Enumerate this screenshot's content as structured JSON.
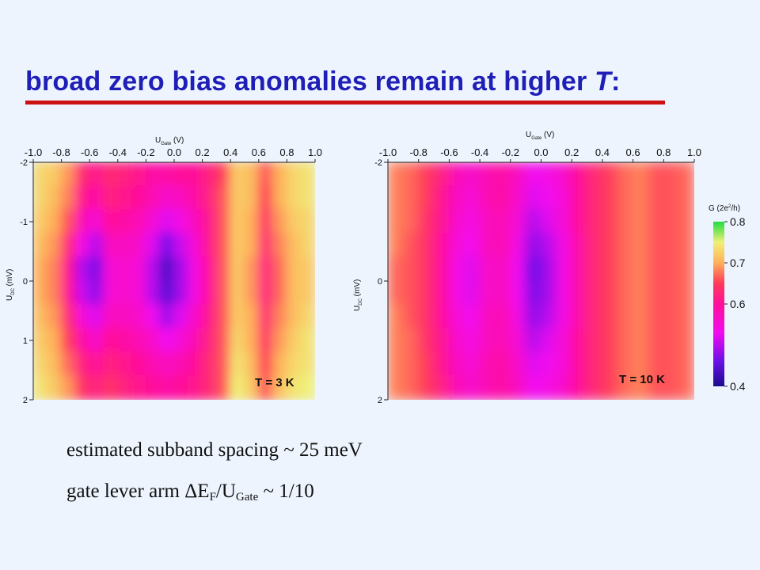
{
  "slide": {
    "title_main": "broad zero bias anomalies remain at higher ",
    "title_italic": "T",
    "title_end": ":",
    "accent_color": "#1f1fb8",
    "rule_color": "#cc1111"
  },
  "notes": {
    "line1": "estimated subband spacing ~ 25 meV",
    "line2_pre": "gate lever arm ",
    "line2_delta": "ΔE",
    "line2_sub1": "F",
    "line2_mid": "/U",
    "line2_sub2": "Gate",
    "line2_post": " ~ 1/10"
  },
  "chart_data": [
    {
      "type": "heatmap",
      "annotation": "T = 3 K",
      "xlabel": "U",
      "xlabel_sub": "Gate",
      "xlabel_unit": " (V)",
      "ylabel": "U",
      "ylabel_sub": "DC",
      "ylabel_unit": " (mV)",
      "xlim": [
        -1.0,
        1.0
      ],
      "ylim": [
        -2,
        2
      ],
      "x_ticks": [
        "-1.0",
        "-0.8",
        "-0.6",
        "-0.4",
        "-0.2",
        "0.0",
        "0.2",
        "0.4",
        "0.6",
        "0.8",
        "1.0"
      ],
      "y_ticks": [
        "-2",
        "-1",
        "0",
        "1",
        "2"
      ],
      "x": [
        -0.95,
        -0.85,
        -0.75,
        -0.65,
        -0.55,
        -0.45,
        -0.35,
        -0.25,
        -0.15,
        -0.05,
        0.05,
        0.15,
        0.25,
        0.35,
        0.45,
        0.55,
        0.65,
        0.75,
        0.85,
        0.95
      ],
      "y": [
        -1.8,
        -1.4,
        -1.0,
        -0.6,
        -0.2,
        0.2,
        0.6,
        1.0,
        1.4,
        1.8
      ],
      "z": [
        [
          0.73,
          0.72,
          0.69,
          0.63,
          0.61,
          0.63,
          0.62,
          0.61,
          0.59,
          0.59,
          0.6,
          0.6,
          0.62,
          0.65,
          0.72,
          0.71,
          0.66,
          0.7,
          0.73,
          0.74
        ],
        [
          0.73,
          0.71,
          0.68,
          0.61,
          0.59,
          0.62,
          0.61,
          0.6,
          0.58,
          0.56,
          0.57,
          0.59,
          0.62,
          0.66,
          0.72,
          0.71,
          0.65,
          0.7,
          0.73,
          0.74
        ],
        [
          0.72,
          0.7,
          0.66,
          0.58,
          0.55,
          0.6,
          0.59,
          0.58,
          0.55,
          0.52,
          0.54,
          0.57,
          0.61,
          0.66,
          0.72,
          0.7,
          0.64,
          0.69,
          0.72,
          0.73
        ],
        [
          0.71,
          0.69,
          0.63,
          0.54,
          0.5,
          0.57,
          0.57,
          0.56,
          0.52,
          0.47,
          0.51,
          0.55,
          0.61,
          0.66,
          0.72,
          0.7,
          0.63,
          0.68,
          0.71,
          0.73
        ],
        [
          0.7,
          0.68,
          0.61,
          0.5,
          0.47,
          0.55,
          0.56,
          0.55,
          0.5,
          0.44,
          0.49,
          0.54,
          0.6,
          0.66,
          0.72,
          0.69,
          0.62,
          0.67,
          0.71,
          0.72
        ],
        [
          0.7,
          0.68,
          0.61,
          0.51,
          0.48,
          0.55,
          0.56,
          0.55,
          0.5,
          0.45,
          0.49,
          0.54,
          0.6,
          0.66,
          0.72,
          0.69,
          0.62,
          0.67,
          0.71,
          0.72
        ],
        [
          0.71,
          0.69,
          0.63,
          0.55,
          0.52,
          0.57,
          0.57,
          0.56,
          0.53,
          0.49,
          0.52,
          0.56,
          0.61,
          0.66,
          0.72,
          0.7,
          0.63,
          0.68,
          0.71,
          0.73
        ],
        [
          0.72,
          0.7,
          0.65,
          0.59,
          0.56,
          0.6,
          0.59,
          0.58,
          0.56,
          0.53,
          0.55,
          0.58,
          0.62,
          0.66,
          0.73,
          0.7,
          0.64,
          0.69,
          0.72,
          0.74
        ],
        [
          0.73,
          0.71,
          0.67,
          0.62,
          0.6,
          0.62,
          0.61,
          0.6,
          0.58,
          0.57,
          0.58,
          0.6,
          0.63,
          0.66,
          0.74,
          0.71,
          0.65,
          0.7,
          0.73,
          0.74
        ],
        [
          0.74,
          0.72,
          0.69,
          0.64,
          0.62,
          0.64,
          0.62,
          0.61,
          0.6,
          0.59,
          0.6,
          0.61,
          0.63,
          0.66,
          0.75,
          0.72,
          0.66,
          0.71,
          0.74,
          0.75
        ]
      ]
    },
    {
      "type": "heatmap",
      "annotation": "T = 10 K",
      "xlabel": "U",
      "xlabel_sub": "Gate",
      "xlabel_unit": " (V)",
      "ylabel": "U",
      "ylabel_sub": "DC",
      "ylabel_unit": " (mV)",
      "xlim": [
        -1.0,
        1.0
      ],
      "ylim": [
        -2,
        2
      ],
      "x_ticks": [
        "-1.0",
        "-0.8",
        "-0.6",
        "-0.4",
        "-0.2",
        "0.0",
        "0.2",
        "0.4",
        "0.6",
        "0.8",
        "1.0"
      ],
      "y_ticks": [
        "-2",
        "0",
        "2"
      ],
      "x": [
        -0.95,
        -0.85,
        -0.75,
        -0.65,
        -0.55,
        -0.45,
        -0.35,
        -0.25,
        -0.15,
        -0.05,
        0.05,
        0.15,
        0.25,
        0.35,
        0.45,
        0.55,
        0.65,
        0.75,
        0.85,
        0.95
      ],
      "y": [
        -1.8,
        -1.4,
        -1.0,
        -0.6,
        -0.2,
        0.2,
        0.6,
        1.0,
        1.4,
        1.8
      ],
      "z": [
        [
          0.68,
          0.67,
          0.65,
          0.62,
          0.58,
          0.56,
          0.58,
          0.59,
          0.57,
          0.53,
          0.54,
          0.56,
          0.6,
          0.63,
          0.65,
          0.67,
          0.68,
          0.66,
          0.66,
          0.67
        ],
        [
          0.68,
          0.67,
          0.65,
          0.61,
          0.57,
          0.55,
          0.58,
          0.59,
          0.56,
          0.52,
          0.53,
          0.55,
          0.6,
          0.63,
          0.65,
          0.67,
          0.68,
          0.66,
          0.66,
          0.67
        ],
        [
          0.68,
          0.67,
          0.64,
          0.61,
          0.56,
          0.54,
          0.57,
          0.58,
          0.55,
          0.5,
          0.52,
          0.55,
          0.6,
          0.63,
          0.65,
          0.67,
          0.68,
          0.66,
          0.66,
          0.67
        ],
        [
          0.68,
          0.66,
          0.64,
          0.6,
          0.55,
          0.53,
          0.57,
          0.58,
          0.54,
          0.48,
          0.5,
          0.54,
          0.59,
          0.63,
          0.65,
          0.67,
          0.68,
          0.66,
          0.66,
          0.67
        ],
        [
          0.67,
          0.66,
          0.64,
          0.6,
          0.54,
          0.52,
          0.56,
          0.57,
          0.53,
          0.46,
          0.49,
          0.54,
          0.59,
          0.63,
          0.65,
          0.67,
          0.68,
          0.66,
          0.66,
          0.67
        ],
        [
          0.67,
          0.66,
          0.64,
          0.6,
          0.54,
          0.52,
          0.56,
          0.57,
          0.53,
          0.47,
          0.49,
          0.54,
          0.59,
          0.63,
          0.65,
          0.67,
          0.68,
          0.66,
          0.66,
          0.67
        ],
        [
          0.68,
          0.66,
          0.64,
          0.6,
          0.55,
          0.53,
          0.57,
          0.58,
          0.54,
          0.48,
          0.5,
          0.54,
          0.59,
          0.63,
          0.65,
          0.67,
          0.68,
          0.66,
          0.66,
          0.67
        ],
        [
          0.68,
          0.67,
          0.64,
          0.61,
          0.56,
          0.54,
          0.57,
          0.58,
          0.55,
          0.5,
          0.52,
          0.55,
          0.6,
          0.63,
          0.65,
          0.67,
          0.68,
          0.66,
          0.66,
          0.67
        ],
        [
          0.68,
          0.67,
          0.65,
          0.61,
          0.57,
          0.55,
          0.58,
          0.59,
          0.56,
          0.52,
          0.53,
          0.55,
          0.6,
          0.63,
          0.65,
          0.67,
          0.68,
          0.66,
          0.66,
          0.67
        ],
        [
          0.68,
          0.67,
          0.65,
          0.62,
          0.58,
          0.56,
          0.58,
          0.59,
          0.57,
          0.53,
          0.54,
          0.56,
          0.6,
          0.63,
          0.65,
          0.67,
          0.68,
          0.66,
          0.66,
          0.67
        ]
      ]
    }
  ],
  "colorbar": {
    "label_pre": "G  (2e",
    "label_sup": "2",
    "label_post": "/h)",
    "range": [
      0.4,
      0.8
    ],
    "ticks": [
      "0.8",
      "0.7",
      "0.6",
      "0.4"
    ],
    "tick_values": [
      0.8,
      0.7,
      0.6,
      0.4
    ],
    "stops": [
      {
        "value": 0.4,
        "color": "#1a0a8c"
      },
      {
        "value": 0.46,
        "color": "#6a10e6"
      },
      {
        "value": 0.53,
        "color": "#f20cf0"
      },
      {
        "value": 0.6,
        "color": "#ff0f9a"
      },
      {
        "value": 0.65,
        "color": "#ff3a5a"
      },
      {
        "value": 0.7,
        "color": "#ffb05a"
      },
      {
        "value": 0.75,
        "color": "#f0f078"
      },
      {
        "value": 0.8,
        "color": "#20dd40"
      }
    ]
  }
}
